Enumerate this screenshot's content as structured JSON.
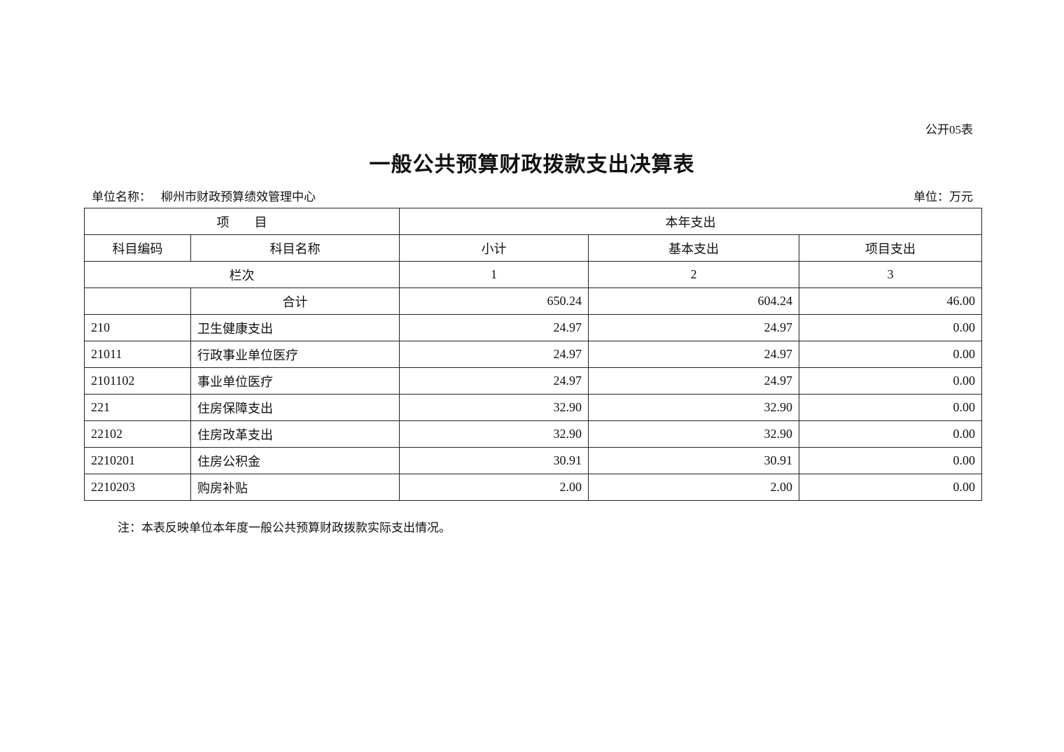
{
  "form_number": "公开05表",
  "title": "一般公共预算财政拨款支出决算表",
  "unit_name_label": "单位名称：",
  "unit_name": "柳州市财政预算绩效管理中心",
  "unit_label": "单位：万元",
  "table": {
    "header_item": "项　　目",
    "header_current_year": "本年支出",
    "col_code": "科目编码",
    "col_name": "科目名称",
    "col_subtotal": "小计",
    "col_basic": "基本支出",
    "col_project": "项目支出",
    "column_index_label": "栏次",
    "column_index": [
      "1",
      "2",
      "3"
    ],
    "total_label": "合计",
    "total": [
      "650.24",
      "604.24",
      "46.00"
    ],
    "rows": [
      {
        "code": "210",
        "name": "卫生健康支出",
        "subtotal": "24.97",
        "basic": "24.97",
        "project": "0.00"
      },
      {
        "code": "21011",
        "name": "行政事业单位医疗",
        "subtotal": "24.97",
        "basic": "24.97",
        "project": "0.00"
      },
      {
        "code": "2101102",
        "name": "事业单位医疗",
        "subtotal": "24.97",
        "basic": "24.97",
        "project": "0.00"
      },
      {
        "code": "221",
        "name": "住房保障支出",
        "subtotal": "32.90",
        "basic": "32.90",
        "project": "0.00"
      },
      {
        "code": "22102",
        "name": "住房改革支出",
        "subtotal": "32.90",
        "basic": "32.90",
        "project": "0.00"
      },
      {
        "code": "2210201",
        "name": "住房公积金",
        "subtotal": "30.91",
        "basic": "30.91",
        "project": "0.00"
      },
      {
        "code": "2210203",
        "name": "购房补贴",
        "subtotal": "2.00",
        "basic": "2.00",
        "project": "0.00"
      }
    ]
  },
  "note": "注：本表反映单位本年度一般公共预算财政拨款实际支出情况。"
}
